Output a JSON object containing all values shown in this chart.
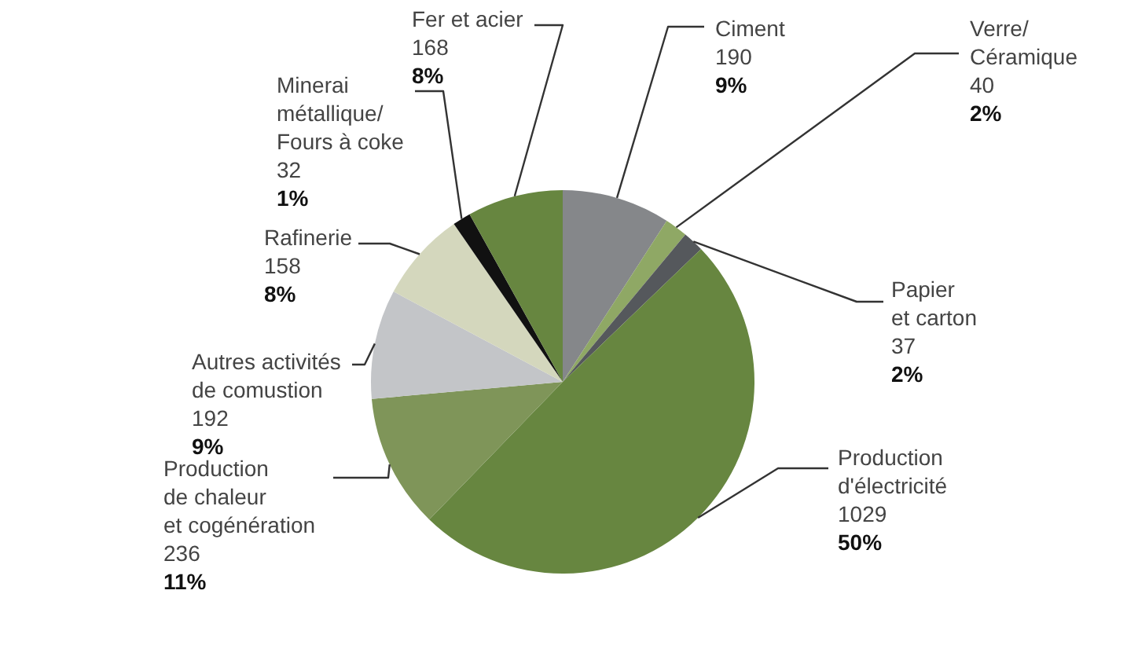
{
  "chart_data": {
    "type": "pie",
    "categories": [
      "Ciment",
      "Verre/\nCéramique",
      "Papier\net carton",
      "Production\nd'électricité",
      "Production\nde chaleur\net cogénération",
      "Autres activités\nde comustion",
      "Rafinerie",
      "Minerai\nmétallique/\nFours à coke",
      "Fer et acier"
    ],
    "values": [
      190,
      40,
      37,
      1029,
      236,
      192,
      158,
      32,
      168
    ],
    "colors": [
      "#85878a",
      "#8fa865",
      "#55585c",
      "#678640",
      "#7f9559",
      "#c3c5c8",
      "#d4d7bd",
      "#111111",
      "#678640"
    ],
    "value_labels": [
      "190\n9%",
      "40\n2%",
      "37\n2%",
      "1029\n50%",
      "236\n11%",
      "192\n9%",
      "158\n8%",
      "32\n1%",
      "168\n8%"
    ],
    "legend": false
  }
}
